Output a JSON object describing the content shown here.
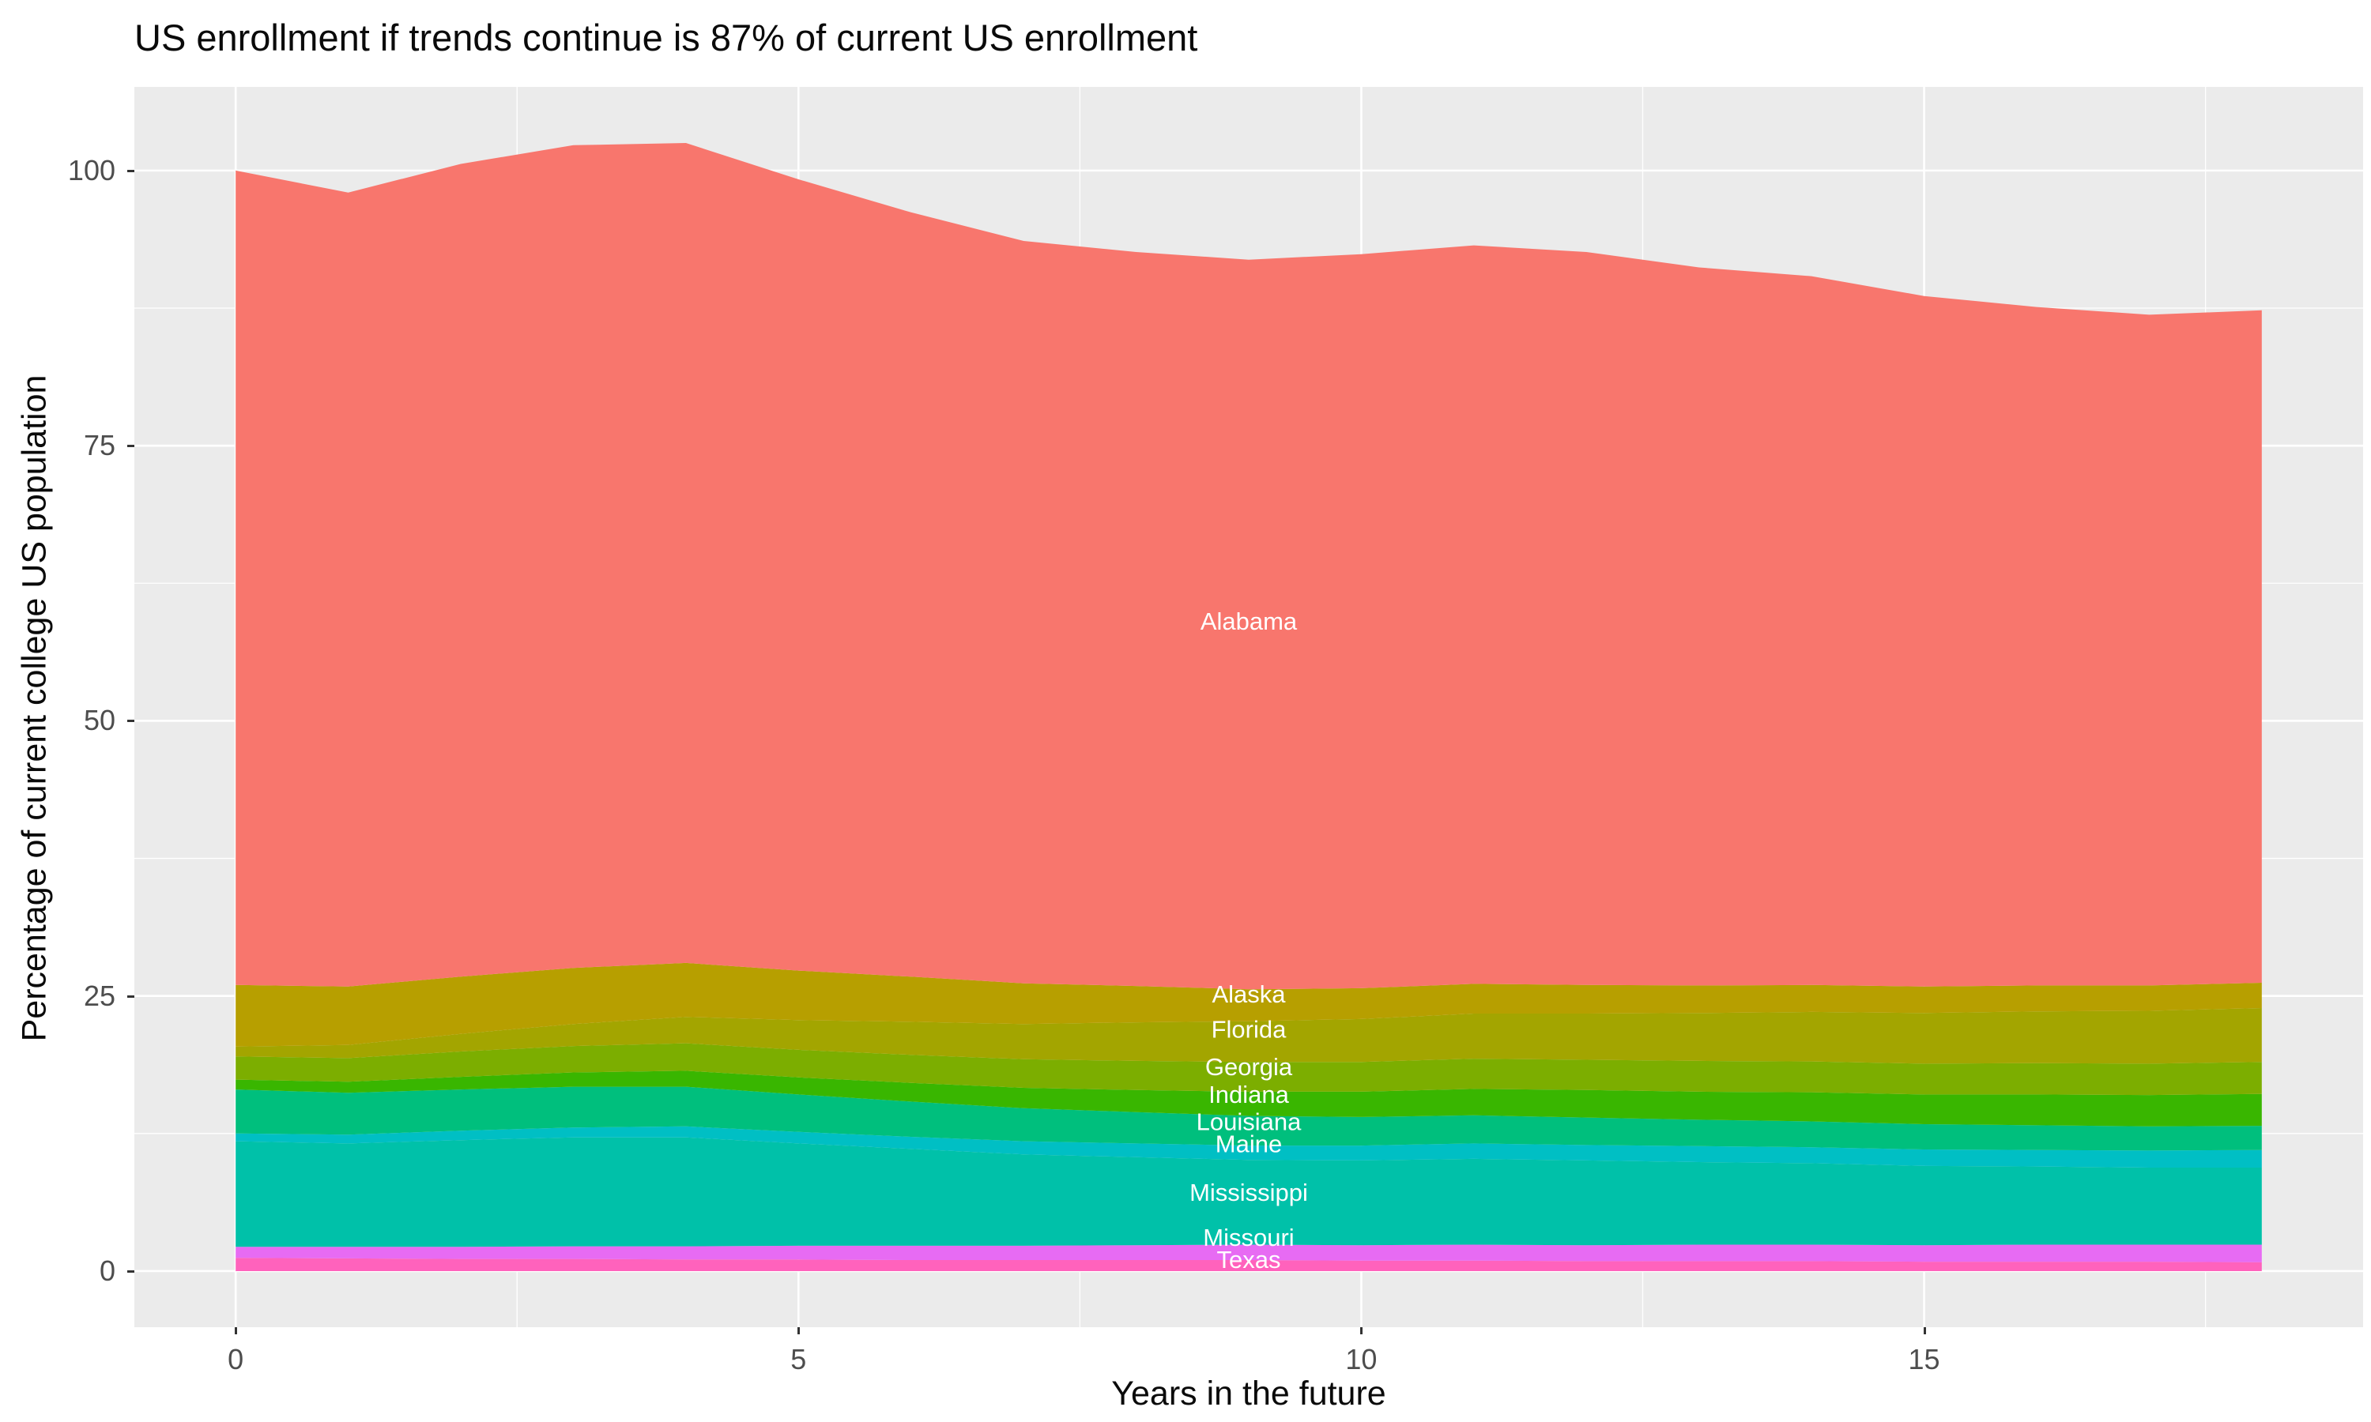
{
  "title": "US enrollment if trends continue is 87% of current US enrollment",
  "chart_data": {
    "type": "area",
    "stacked": true,
    "title": "US enrollment if trends continue is 87% of current US enrollment",
    "xlabel": "Years in the future",
    "ylabel": "Percentage of current college US population",
    "panel_bg": "#EBEBEB",
    "grid_color": "#FFFFFF",
    "tick_color": "#333333",
    "tick_label_color": "#4D4D4D",
    "x": [
      0,
      1,
      2,
      3,
      4,
      5,
      6,
      7,
      8,
      9,
      10,
      11,
      12,
      13,
      14,
      15,
      16,
      17,
      18
    ],
    "x_ticks": [
      0,
      5,
      10,
      15
    ],
    "y_ticks": [
      0,
      25,
      50,
      75,
      100
    ],
    "x_minor": [
      2.5,
      7.5,
      12.5,
      17.5
    ],
    "y_minor": [
      12.5,
      37.5,
      62.5,
      87.5
    ],
    "xlim": [
      -0.9,
      18.9
    ],
    "ylim": [
      -5.1,
      107.6
    ],
    "legend_position": "none",
    "grid": "on",
    "stack_order": "bottom to top",
    "series": [
      {
        "name": "Texas",
        "color": "#FF62BC",
        "values": [
          1.2,
          1.15,
          1.1,
          1.1,
          1.05,
          1.05,
          1.0,
          1.0,
          1.0,
          1.0,
          0.95,
          0.95,
          0.9,
          0.9,
          0.9,
          0.85,
          0.85,
          0.85,
          0.8
        ]
      },
      {
        "name": "Missouri",
        "color": "#E76BF3",
        "values": [
          1.0,
          1.05,
          1.1,
          1.15,
          1.2,
          1.25,
          1.3,
          1.3,
          1.35,
          1.4,
          1.4,
          1.45,
          1.45,
          1.5,
          1.5,
          1.5,
          1.55,
          1.55,
          1.6
        ]
      },
      {
        "name": "Mississippi",
        "color": "#00C1A9",
        "values": [
          9.6,
          9.4,
          9.7,
          9.9,
          9.9,
          9.3,
          8.8,
          8.3,
          8.0,
          7.7,
          7.7,
          7.8,
          7.7,
          7.5,
          7.4,
          7.2,
          7.1,
          7.0,
          7.0
        ]
      },
      {
        "name": "Maine",
        "color": "#00BFC4",
        "values": [
          0.7,
          0.8,
          0.85,
          0.9,
          1.0,
          1.05,
          1.1,
          1.2,
          1.25,
          1.3,
          1.35,
          1.4,
          1.4,
          1.45,
          1.45,
          1.5,
          1.5,
          1.55,
          1.6
        ]
      },
      {
        "name": "Louisiana",
        "color": "#00BF7D",
        "values": [
          4.0,
          3.8,
          3.75,
          3.7,
          3.6,
          3.4,
          3.2,
          3.0,
          2.85,
          2.7,
          2.6,
          2.55,
          2.5,
          2.4,
          2.35,
          2.3,
          2.25,
          2.2,
          2.2
        ]
      },
      {
        "name": "Indiana",
        "color": "#39B600",
        "values": [
          0.9,
          1.0,
          1.15,
          1.3,
          1.45,
          1.55,
          1.7,
          1.85,
          2.0,
          2.2,
          2.3,
          2.4,
          2.5,
          2.55,
          2.65,
          2.7,
          2.8,
          2.85,
          2.9
        ]
      },
      {
        "name": "Georgia",
        "color": "#7CAE00",
        "values": [
          2.1,
          2.15,
          2.3,
          2.4,
          2.5,
          2.5,
          2.55,
          2.6,
          2.65,
          2.7,
          2.7,
          2.75,
          2.75,
          2.8,
          2.8,
          2.8,
          2.85,
          2.85,
          2.9
        ]
      },
      {
        "name": "Florida",
        "color": "#A3A500",
        "values": [
          0.9,
          1.2,
          1.6,
          2.0,
          2.4,
          2.7,
          3.0,
          3.2,
          3.5,
          3.7,
          3.9,
          4.1,
          4.2,
          4.35,
          4.5,
          4.6,
          4.7,
          4.8,
          4.9
        ]
      },
      {
        "name": "Alaska",
        "color": "#B79F00",
        "values": [
          5.6,
          5.3,
          5.2,
          5.1,
          4.9,
          4.5,
          4.1,
          3.7,
          3.3,
          2.9,
          2.8,
          2.7,
          2.6,
          2.5,
          2.45,
          2.4,
          2.35,
          2.3,
          2.3
        ]
      },
      {
        "name": "Alabama",
        "color": "#F8766D",
        "values": [
          74.0,
          72.15,
          73.85,
          74.75,
          74.5,
          71.9,
          69.45,
          67.45,
          66.7,
          66.3,
          66.7,
          67.1,
          66.6,
          65.25,
          64.4,
          62.75,
          61.65,
          60.95,
          61.1
        ]
      }
    ],
    "totals": [
      100.0,
      98.0,
      100.6,
      102.3,
      102.5,
      99.2,
      96.2,
      93.6,
      92.6,
      91.9,
      92.4,
      93.2,
      92.6,
      91.2,
      90.4,
      88.6,
      87.6,
      86.9,
      87.3
    ],
    "labels": [
      {
        "name": "Alabama",
        "x": 9,
        "y": 58.3
      },
      {
        "name": "Alaska",
        "x": 9,
        "y": 24.4
      },
      {
        "name": "Florida",
        "x": 9,
        "y": 21.2
      },
      {
        "name": "Georgia",
        "x": 9,
        "y": 17.8
      },
      {
        "name": "Indiana",
        "x": 9,
        "y": 15.3
      },
      {
        "name": "Louisiana",
        "x": 9,
        "y": 12.8
      },
      {
        "name": "Maine",
        "x": 9,
        "y": 10.8
      },
      {
        "name": "Mississippi",
        "x": 9,
        "y": 6.4
      },
      {
        "name": "Missouri",
        "x": 9,
        "y": 2.3
      },
      {
        "name": "Texas",
        "x": 9,
        "y": 0.3
      }
    ],
    "label_text_color": "#FFFFFF"
  }
}
